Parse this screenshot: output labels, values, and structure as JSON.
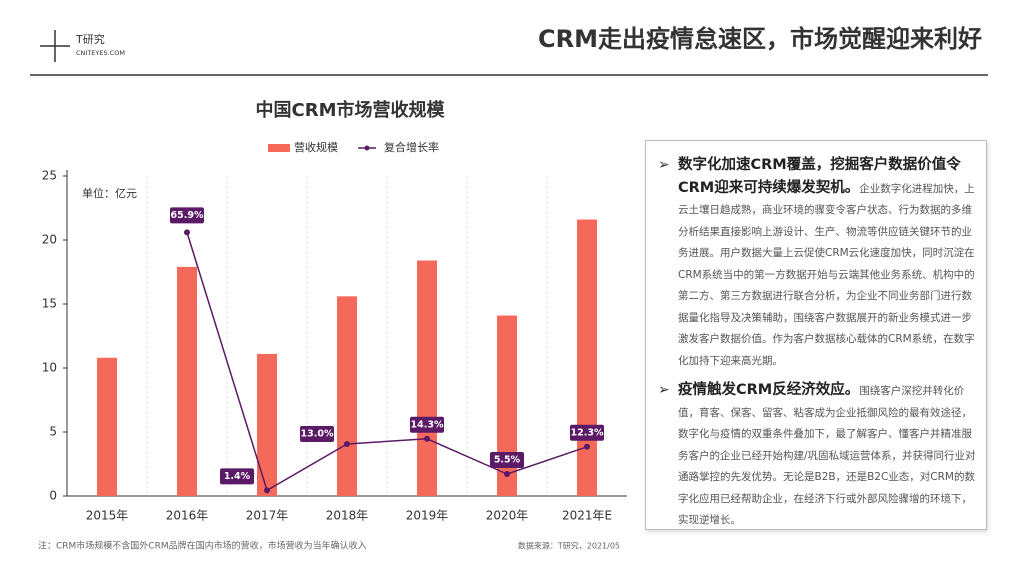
{
  "header": {
    "logo": "T研究",
    "logo_sub": "CNITEYES.COM",
    "title": "CRM走出疫情怠速区，市场觉醒迎来利好"
  },
  "chart_data": {
    "type": "bar",
    "title": "中国CRM市场营收规模",
    "unit_label": "单位：亿元",
    "categories": [
      "2015年",
      "2016年",
      "2017年",
      "2018年",
      "2019年",
      "2020年",
      "2021年E"
    ],
    "series": [
      {
        "name": "营收规模",
        "type": "bar",
        "color": "#f4695a",
        "values": [
          10.8,
          17.9,
          11.1,
          15.6,
          18.4,
          14.1,
          21.6
        ]
      },
      {
        "name": "复合增长率",
        "type": "line",
        "axis": "y2",
        "color": "#5b1a66",
        "values": [
          null,
          65.9,
          1.4,
          13.0,
          14.3,
          5.5,
          12.3
        ],
        "value_labels": [
          null,
          "65.9%",
          "1.4%",
          "13.0%",
          "14.3%",
          "5.5%",
          "12.3%"
        ]
      }
    ],
    "ylim": [
      0,
      25
    ],
    "yticks": [
      0,
      5,
      10,
      15,
      20,
      25
    ],
    "y2lim": [
      0,
      80
    ],
    "grid": false,
    "legend": "top",
    "note": "注：CRM市场规模不含国外CRM品牌在国内市场的营收，市场营收为当年确认收入",
    "source": "数据来源：T研究，2021/05"
  },
  "panel": {
    "points": [
      {
        "heading": "数字化加速CRM覆盖，挖掘客户数据价值令CRM迎来可持续爆发契机。",
        "body": "企业数字化进程加快，上云土壤日趋成熟，商业环境的骤变令客户状态、行为数据的多维分析结果直接影响上游设计、生产、物流等供应链关键环节的业务进展。用户数据大量上云促使CRM云化速度加快，同时沉淀在CRM系统当中的第一方数据开始与云端其他业务系统、机构中的第二方、第三方数据进行联合分析，为企业不同业务部门进行数据量化指导及决策辅助，围绕客户数据展开的新业务模式进一步激发客户数据价值。作为客户数据核心载体的CRM系统，在数字化加持下迎来高光期。"
      },
      {
        "heading": "疫情触发CRM反经济效应。",
        "body": "围绕客户深挖并转化价值，育客、保客、留客、粘客成为企业抵御风险的最有效途径，数字化与疫情的双重条件叠加下，最了解客户、懂客户并精准服务客户的企业已经开始构建/巩固私域运营体系，并获得同行业对通路掌控的先发优势。无论是B2B，还是B2C业态，对CRM的数字化应用已经帮助企业，在经济下行或外部风险骤增的环境下，实现逆增长。"
      }
    ]
  }
}
